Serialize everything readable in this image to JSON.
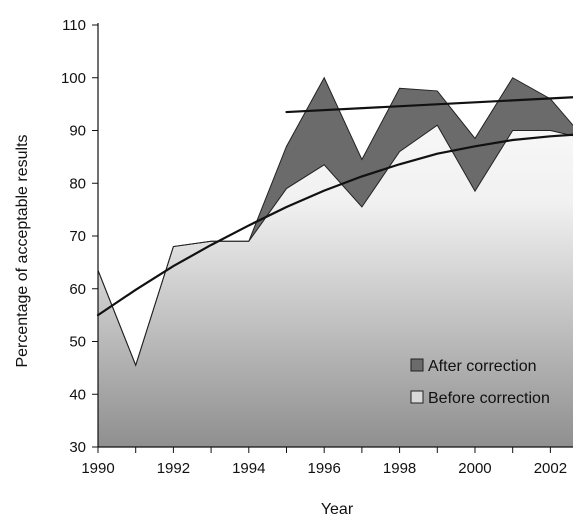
{
  "chart_data": {
    "type": "area",
    "title": "",
    "xlabel": "Year",
    "ylabel": "Percentage of acceptable results",
    "xlim": [
      1990,
      2002.6
    ],
    "ylim": [
      30,
      110
    ],
    "x_ticks": [
      1990,
      1992,
      1994,
      1996,
      1998,
      2000,
      2002
    ],
    "y_ticks": [
      30,
      40,
      50,
      60,
      70,
      80,
      90,
      100,
      110
    ],
    "grid": false,
    "legend_position": "bottom-right",
    "series": [
      {
        "name": "After correction",
        "color": "#6b6b6b",
        "x": [
          1990,
          1991,
          1992,
          1993,
          1994,
          1995,
          1996,
          1997,
          1998,
          1999,
          2000,
          2001,
          2002,
          2002.6
        ],
        "values": [
          63.5,
          45.5,
          68,
          69,
          69,
          87,
          100,
          84.5,
          98,
          97.5,
          88.5,
          100,
          96,
          91
        ]
      },
      {
        "name": "Before correction",
        "color": "#d9d9d9",
        "x": [
          1990,
          1991,
          1992,
          1993,
          1994,
          1995,
          1996,
          1997,
          1998,
          1999,
          2000,
          2001,
          2002,
          2002.6
        ],
        "values": [
          63.5,
          45.5,
          68,
          69,
          69,
          79,
          83.5,
          75.5,
          86,
          91,
          78.5,
          90,
          90,
          89
        ]
      }
    ],
    "trend_lines": [
      {
        "kind": "linear",
        "x": [
          1995,
          2002.6
        ],
        "values": [
          93.5,
          96.3
        ]
      },
      {
        "kind": "curve",
        "x": [
          1990,
          1991,
          1992,
          1993,
          1994,
          1995,
          1996,
          1997,
          1998,
          1999,
          2000,
          2001,
          2002,
          2002.6
        ],
        "values": [
          55,
          59.8,
          64.3,
          68.3,
          72,
          75.5,
          78.6,
          81.3,
          83.6,
          85.6,
          87,
          88.2,
          88.9,
          89.2
        ]
      }
    ]
  }
}
